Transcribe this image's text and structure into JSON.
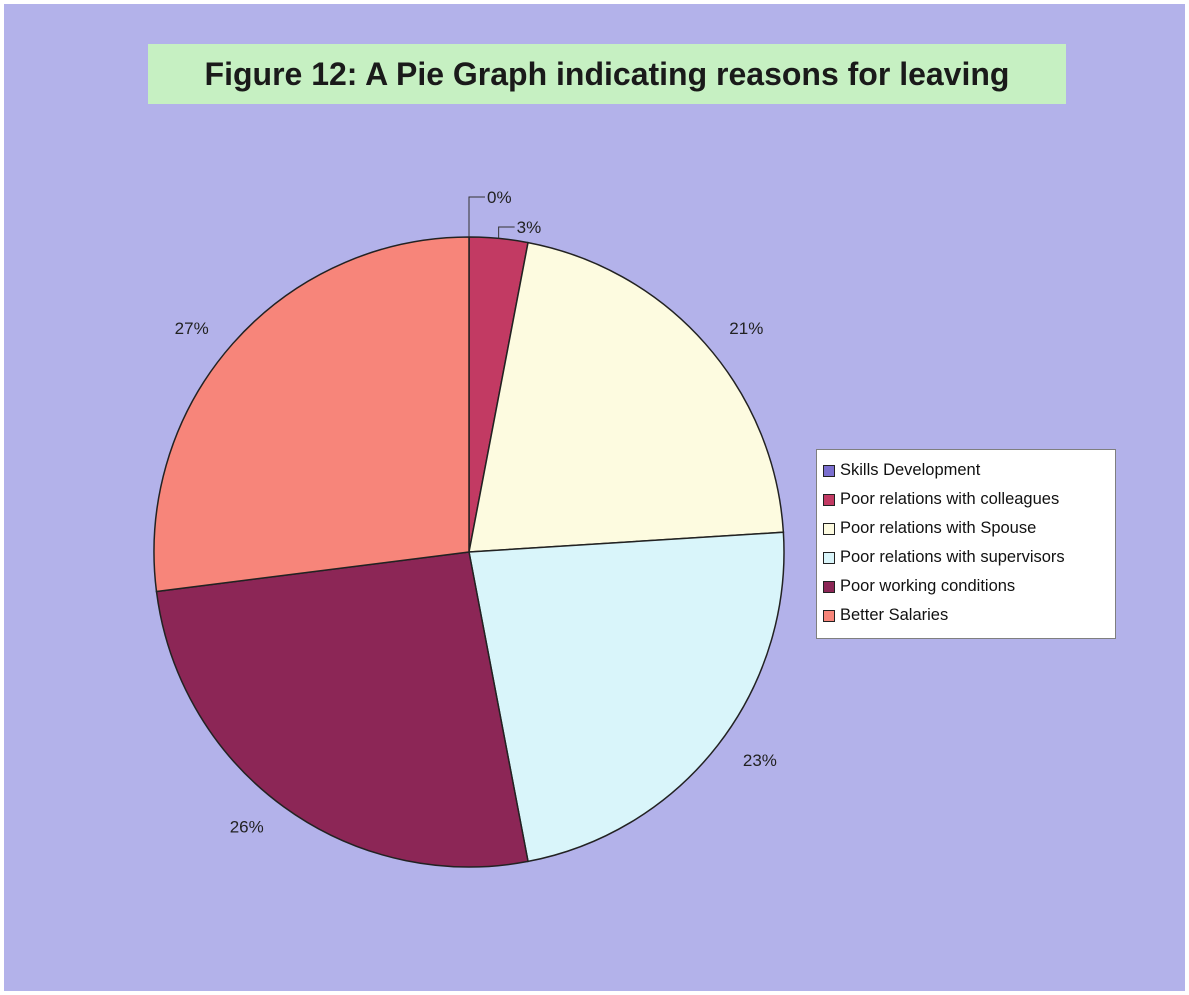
{
  "chart_data": {
    "type": "pie",
    "title": "Figure 12:  A Pie Graph indicating reasons for leaving",
    "legend_position": "right",
    "categories": [
      "Skills Development",
      "Poor relations with colleagues",
      "Poor relations with Spouse",
      "Poor relations with supervisors",
      "Poor working conditions",
      "Better Salaries"
    ],
    "values": [
      0,
      3,
      21,
      23,
      26,
      27
    ],
    "labels": [
      "0%",
      "3%",
      "21%",
      "23%",
      "26%",
      "27%"
    ],
    "colors": [
      "#7b6fcf",
      "#c23a63",
      "#fdfbe0",
      "#d9f5fa",
      "#8c2656",
      "#f7857a"
    ]
  },
  "colors": {
    "background": "#b3b2ea",
    "title_background": "#c6f0c2",
    "legend_background": "#ffffff"
  }
}
